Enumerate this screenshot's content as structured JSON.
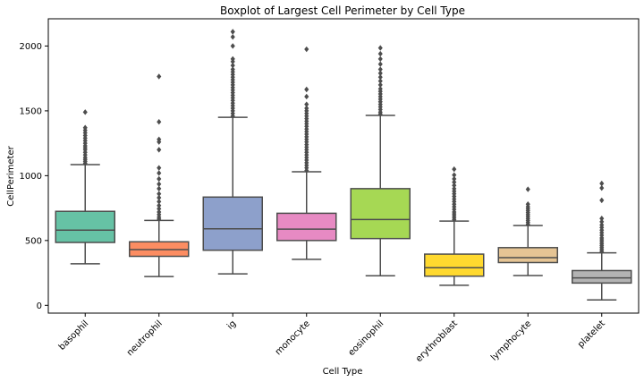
{
  "chart_data": {
    "type": "boxplot",
    "title": "Boxplot of Largest Cell Perimeter by Cell Type",
    "xlabel": "Cell Type",
    "ylabel": "CellPerimeter",
    "ylim": [
      -60,
      2210
    ],
    "yticks": [
      0,
      500,
      1000,
      1500,
      2000
    ],
    "grid": false,
    "legend": "none",
    "categories": [
      "basophil",
      "neutrophil",
      "ig",
      "monocyte",
      "eosinophil",
      "erythroblast",
      "lymphocyte",
      "platelet"
    ],
    "colors": [
      "#66c2a5",
      "#fc8d62",
      "#8da0cb",
      "#e78ac3",
      "#a6d854",
      "#ffd92f",
      "#e5c494",
      "#b3b3b3"
    ],
    "boxes": [
      {
        "whislo": 320,
        "q1": 485,
        "med": 580,
        "q3": 725,
        "whishi": 1085,
        "fliers": [
          1095,
          1110,
          1125,
          1140,
          1160,
          1180,
          1200,
          1215,
          1230,
          1250,
          1270,
          1290,
          1310,
          1330,
          1350,
          1370,
          1490
        ]
      },
      {
        "whislo": 222,
        "q1": 378,
        "med": 430,
        "q3": 490,
        "whishi": 655,
        "fliers": [
          665,
          680,
          700,
          720,
          745,
          770,
          800,
          830,
          860,
          900,
          935,
          975,
          1020,
          1060,
          1200,
          1260,
          1280,
          1415,
          1765
        ]
      },
      {
        "whislo": 243,
        "q1": 425,
        "med": 590,
        "q3": 835,
        "whishi": 1450,
        "fliers": [
          1460,
          1480,
          1500,
          1520,
          1540,
          1560,
          1580,
          1600,
          1620,
          1640,
          1660,
          1680,
          1700,
          1720,
          1740,
          1760,
          1780,
          1800,
          1820,
          1850,
          1880,
          1900,
          2000,
          2070,
          2110
        ]
      },
      {
        "whislo": 355,
        "q1": 500,
        "med": 588,
        "q3": 710,
        "whishi": 1030,
        "fliers": [
          1040,
          1060,
          1080,
          1100,
          1120,
          1140,
          1160,
          1180,
          1200,
          1220,
          1240,
          1260,
          1280,
          1300,
          1320,
          1340,
          1360,
          1380,
          1400,
          1420,
          1440,
          1460,
          1480,
          1500,
          1520,
          1550,
          1610,
          1665,
          1975
        ]
      },
      {
        "whislo": 228,
        "q1": 515,
        "med": 662,
        "q3": 900,
        "whishi": 1465,
        "fliers": [
          1475,
          1490,
          1510,
          1530,
          1550,
          1570,
          1590,
          1610,
          1630,
          1650,
          1670,
          1700,
          1730,
          1760,
          1790,
          1820,
          1860,
          1900,
          1940,
          1985
        ]
      },
      {
        "whislo": 155,
        "q1": 225,
        "med": 290,
        "q3": 395,
        "whishi": 650,
        "fliers": [
          660,
          675,
          690,
          705,
          720,
          740,
          760,
          780,
          800,
          820,
          840,
          860,
          880,
          900,
          925,
          950,
          975,
          1005,
          1050
        ]
      },
      {
        "whislo": 230,
        "q1": 330,
        "med": 368,
        "q3": 445,
        "whishi": 615,
        "fliers": [
          625,
          640,
          655,
          670,
          685,
          700,
          715,
          730,
          745,
          760,
          780,
          895
        ]
      },
      {
        "whislo": 42,
        "q1": 172,
        "med": 212,
        "q3": 268,
        "whishi": 405,
        "fliers": [
          415,
          430,
          445,
          460,
          475,
          490,
          505,
          520,
          540,
          560,
          580,
          600,
          620,
          645,
          670,
          810,
          905,
          940
        ]
      }
    ]
  }
}
